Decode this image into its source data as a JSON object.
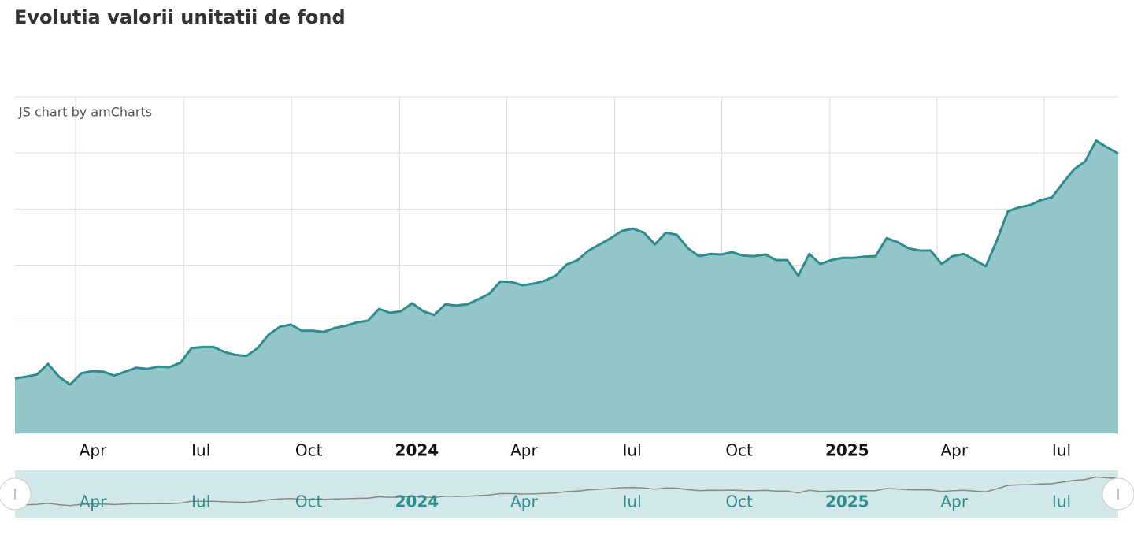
{
  "chart_data": {
    "type": "area",
    "title": "Evolutia valorii unitatii de fond",
    "credit": "JS chart by amCharts",
    "color": "#2e8b8f",
    "fill": "#93c6c8",
    "xlim": [
      0,
      100
    ],
    "xticks": [
      {
        "value": 5.5,
        "label": "Apr"
      },
      {
        "value": 15.29,
        "label": "Iul"
      },
      {
        "value": 25.07,
        "label": "Oct"
      },
      {
        "value": 34.86,
        "label": "2024"
      },
      {
        "value": 44.57,
        "label": "Apr"
      },
      {
        "value": 54.36,
        "label": "Iul"
      },
      {
        "value": 64.07,
        "label": "Oct"
      },
      {
        "value": 73.86,
        "label": "2025"
      },
      {
        "value": 83.57,
        "label": "Apr"
      },
      {
        "value": 93.29,
        "label": "Iul"
      }
    ],
    "ylim": [
      0,
      6
    ],
    "ygrid": [
      0,
      1,
      2,
      3,
      4,
      5,
      6
    ],
    "values": [
      0.98,
      1.01,
      1.05,
      1.24,
      1.01,
      0.87,
      1.07,
      1.11,
      1.1,
      1.03,
      1.1,
      1.17,
      1.15,
      1.19,
      1.18,
      1.26,
      1.52,
      1.54,
      1.54,
      1.45,
      1.4,
      1.38,
      1.52,
      1.76,
      1.9,
      1.94,
      1.83,
      1.83,
      1.81,
      1.88,
      1.92,
      1.98,
      2.01,
      2.22,
      2.15,
      2.18,
      2.32,
      2.18,
      2.11,
      2.3,
      2.28,
      2.3,
      2.39,
      2.49,
      2.71,
      2.7,
      2.64,
      2.67,
      2.72,
      2.81,
      3.01,
      3.09,
      3.26,
      3.37,
      3.48,
      3.61,
      3.65,
      3.58,
      3.37,
      3.58,
      3.54,
      3.3,
      3.16,
      3.2,
      3.19,
      3.23,
      3.17,
      3.16,
      3.19,
      3.09,
      3.09,
      2.81,
      3.2,
      3.02,
      3.09,
      3.13,
      3.13,
      3.15,
      3.16,
      3.48,
      3.41,
      3.3,
      3.26,
      3.26,
      3.02,
      3.16,
      3.2,
      3.09,
      2.98,
      3.44,
      3.96,
      4.03,
      4.07,
      4.16,
      4.21,
      4.47,
      4.71,
      4.85,
      5.22,
      5.1,
      4.99
    ],
    "scrollbar": true
  }
}
